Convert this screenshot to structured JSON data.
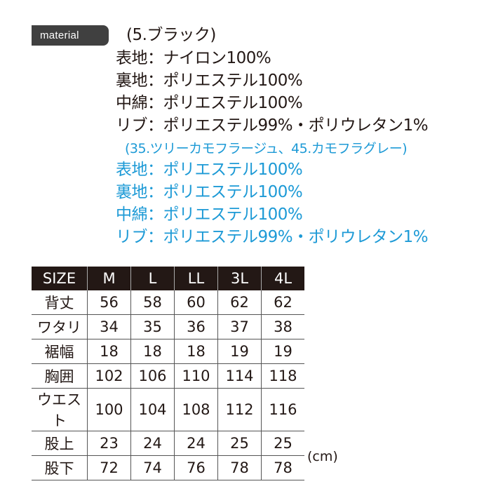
{
  "material_label": "material",
  "colors": {
    "text": "#231815",
    "accent_blue": "#1d9ad6",
    "badge_bg": "#404040"
  },
  "black_group": {
    "heading": "(5.ブラック)",
    "lines": [
      "表地：ナイロン100%",
      "裏地：ポリエステル100%",
      "中綿：ポリエステル100%",
      "リブ：ポリエステル99%・ポリウレタン1%"
    ]
  },
  "camo_group": {
    "heading": "(35.ツリーカモフラージュ、45.カモフラグレー)",
    "lines": [
      "表地：ポリエステル100%",
      "裏地：ポリエステル100%",
      "中綿：ポリエステル100%",
      "リブ：ポリエステル99%・ポリウレタン1%"
    ]
  },
  "size_table": {
    "headers": [
      "SIZE",
      "M",
      "L",
      "LL",
      "3L",
      "4L"
    ],
    "rows": [
      [
        "背丈",
        "56",
        "58",
        "60",
        "62",
        "62"
      ],
      [
        "ワタリ",
        "34",
        "35",
        "36",
        "37",
        "38"
      ],
      [
        "裾幅",
        "18",
        "18",
        "18",
        "19",
        "19"
      ],
      [
        "胸囲",
        "102",
        "106",
        "110",
        "114",
        "118"
      ],
      [
        "ウエスト",
        "100",
        "104",
        "108",
        "112",
        "116"
      ],
      [
        "股上",
        "23",
        "24",
        "24",
        "25",
        "25"
      ],
      [
        "股下",
        "72",
        "74",
        "76",
        "78",
        "78"
      ]
    ],
    "unit": "(cm)"
  }
}
